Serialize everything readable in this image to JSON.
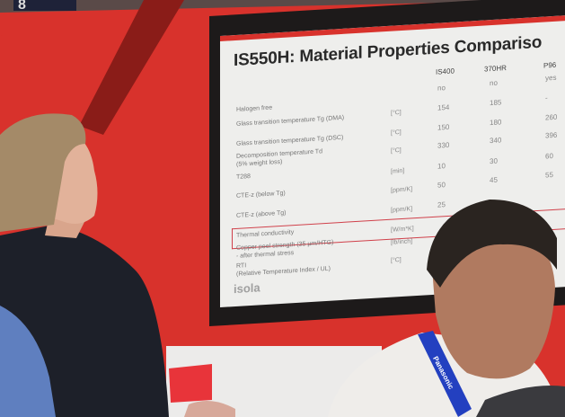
{
  "scene": {
    "sign_fragment": "8",
    "lanyard_text": "Panasonic",
    "colors": {
      "wall": "#d8322c",
      "screen": "#eeeeec",
      "bezel": "#1d1a1a",
      "highlight": "#d0404a",
      "lanyard": "#2340c0"
    }
  },
  "slide": {
    "title": "IS550H: Material Properties Compariso",
    "columns": [
      "IS400",
      "370HR",
      "P96"
    ],
    "rows": [
      {
        "label": "Halogen free",
        "unit": "",
        "values": [
          "no",
          "no",
          "yes"
        ]
      },
      {
        "label": "Glass transition temperature Tg (DMA)",
        "unit": "[°C]",
        "values": [
          "154",
          "185",
          "-"
        ]
      },
      {
        "label": "Glass transition temperature Tg (DSC)",
        "unit": "[°C]",
        "values": [
          "150",
          "180",
          "260"
        ]
      },
      {
        "label": "Decomposition temperature Td",
        "label2": "(5% weight loss)",
        "unit": "[°C]",
        "values": [
          "330",
          "340",
          "396"
        ]
      },
      {
        "label": "T288",
        "unit": "[min]",
        "values": [
          "10",
          "30",
          "60"
        ]
      },
      {
        "label": "CTE-z (below Tg)",
        "unit": "[ppm/K]",
        "values": [
          "50",
          "45",
          "55"
        ]
      },
      {
        "label": "CTE-z (above Tg)",
        "unit": "[ppm/K]",
        "values": [
          "25",
          "",
          ""
        ]
      },
      {
        "label": "Thermal conductivity",
        "unit": "[W/m*K]",
        "values": [
          "",
          "",
          ""
        ]
      },
      {
        "label": "Copper peel strength (35 µm/HTG)",
        "label2": "- after thermal stress",
        "unit": "[lb/inch]",
        "values": [
          "",
          "",
          ""
        ]
      },
      {
        "label": "RTI",
        "label2": "(Relative Temperature Index / UL)",
        "unit": "[°C]",
        "values": [
          "",
          "",
          ""
        ]
      }
    ],
    "logo": "isola"
  }
}
